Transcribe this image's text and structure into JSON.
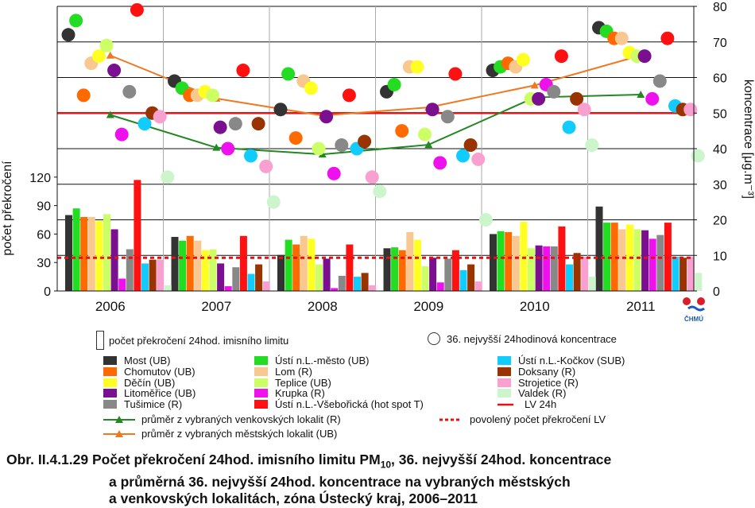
{
  "chart_data": {
    "type": "bar",
    "categories": [
      "2006",
      "2007",
      "2008",
      "2009",
      "2010",
      "2011"
    ],
    "y_left": {
      "label": "počet překročení",
      "ticks": [
        "0",
        "30",
        "60",
        "90",
        "120"
      ],
      "range": [
        0,
        300
      ]
    },
    "y_right": {
      "label": "koncentrace [μg.m⁻³]",
      "ticks": [
        "0",
        "10",
        "20",
        "30",
        "40",
        "50",
        "60",
        "70",
        "80"
      ],
      "range": [
        0,
        80
      ]
    },
    "limit_count": 35,
    "lv_24h": 50,
    "series": [
      {
        "name": "Most (UB)",
        "color": "#333333",
        "exceed": [
          80,
          57,
          38,
          45,
          60,
          89
        ],
        "conc36": [
          72,
          59,
          51,
          56,
          62,
          74
        ]
      },
      {
        "name": "Ústí n.L.-město (UB)",
        "color": "#22dd22",
        "exceed": [
          87,
          53,
          54,
          46,
          63,
          72
        ],
        "conc36": [
          76,
          57,
          61,
          58,
          63,
          73
        ]
      },
      {
        "name": "Chomutov (UB)",
        "color": "#ff6a00",
        "exceed": [
          78,
          58,
          49,
          43,
          62,
          72
        ],
        "conc36": [
          55,
          55,
          43,
          45,
          64,
          71
        ]
      },
      {
        "name": "Lom (R)",
        "color": "#f8c890",
        "exceed": [
          78,
          53,
          58,
          62,
          58,
          65
        ],
        "conc36": [
          64,
          55,
          59,
          63,
          63,
          71
        ]
      },
      {
        "name": "Děčín (UB)",
        "color": "#ffff22",
        "exceed": [
          74,
          43,
          55,
          54,
          73,
          70
        ],
        "conc36": [
          66,
          56,
          57,
          63,
          65,
          67
        ]
      },
      {
        "name": "Teplice (UB)",
        "color": "#ccff66",
        "exceed": [
          81,
          44,
          28,
          26,
          45,
          65
        ],
        "conc36": [
          69,
          55,
          40,
          44,
          54,
          66
        ]
      },
      {
        "name": "Litoměřice (UB)",
        "color": "#7a1090",
        "exceed": [
          65,
          29,
          34,
          35,
          48,
          64
        ],
        "conc36": [
          62,
          46,
          49,
          51,
          54,
          66
        ]
      },
      {
        "name": "Krupka (R)",
        "color": "#ee11ee",
        "exceed": [
          13,
          5,
          3,
          9,
          47,
          55
        ],
        "conc36": [
          44,
          40,
          33,
          36,
          58,
          54
        ]
      },
      {
        "name": "Tušimice (R)",
        "color": "#888888",
        "exceed": [
          44,
          25,
          16,
          34,
          47,
          59
        ],
        "conc36": [
          56,
          47,
          41,
          49,
          56,
          59
        ]
      },
      {
        "name": "Ústí n.L.-Všebořická (hot spot T)",
        "color": "#ff1111",
        "exceed": [
          117,
          58,
          49,
          43,
          68,
          72
        ],
        "conc36": [
          79,
          62,
          55,
          61,
          66,
          71
        ]
      },
      {
        "name": "Ústí n.L.-Kočkov (SUB)",
        "color": "#11ccff",
        "exceed": [
          29,
          18,
          15,
          22,
          28,
          36
        ],
        "conc36": [
          47,
          38,
          40,
          38,
          46,
          52
        ]
      },
      {
        "name": "Doksany (R)",
        "color": "#993300",
        "exceed": [
          33,
          28,
          19,
          28,
          40,
          35
        ],
        "conc36": [
          50,
          47,
          42,
          41,
          54,
          51
        ]
      },
      {
        "name": "Strojetice (R)",
        "color": "#f8a0d0",
        "exceed": [
          33,
          10,
          6,
          10,
          36,
          36
        ],
        "conc36": [
          49,
          35,
          32,
          37,
          51,
          51
        ]
      },
      {
        "name": "Valdek (R)",
        "color": "#ccf5cc",
        "exceed": [
          6,
          0,
          0,
          0,
          15,
          19
        ],
        "conc36": [
          32,
          25,
          28,
          20,
          41,
          38
        ]
      }
    ],
    "lines": [
      {
        "name": "průměr z vybraných venkovských lokalit (R)",
        "color": "#228822",
        "values": [
          49.5,
          40.3,
          38.4,
          41.1,
          54.4,
          55.2
        ]
      },
      {
        "name": "průměr z vybraných městských lokalit  (UB)",
        "color": "#f07820",
        "values": [
          66.2,
          54.1,
          49.3,
          51.6,
          57.8,
          66.2
        ]
      }
    ]
  },
  "legend": {
    "bar_note": "počet překročení 24hod. imisního limitu",
    "circle_note": "36. nejvyšší 24hodinová koncentrace",
    "lv_label": "LV 24h",
    "limit_label": "povolený počet překročení LV",
    "chmu_label": "ČHMÚ"
  },
  "caption": {
    "line1_prefix": "Obr. II.4.1.29  Počet překročení 24hod. imisního limitu PM",
    "line1_sub": "10",
    "line1_suffix": ", 36. nejvyšší 24hod. koncentrace",
    "line2": "a průměrná 36. nejvyšší 24hod. koncentrace na vybraných městských",
    "line3": "a venkovských lokalitách, zóna Ústecký kraj, 2006–2011"
  }
}
